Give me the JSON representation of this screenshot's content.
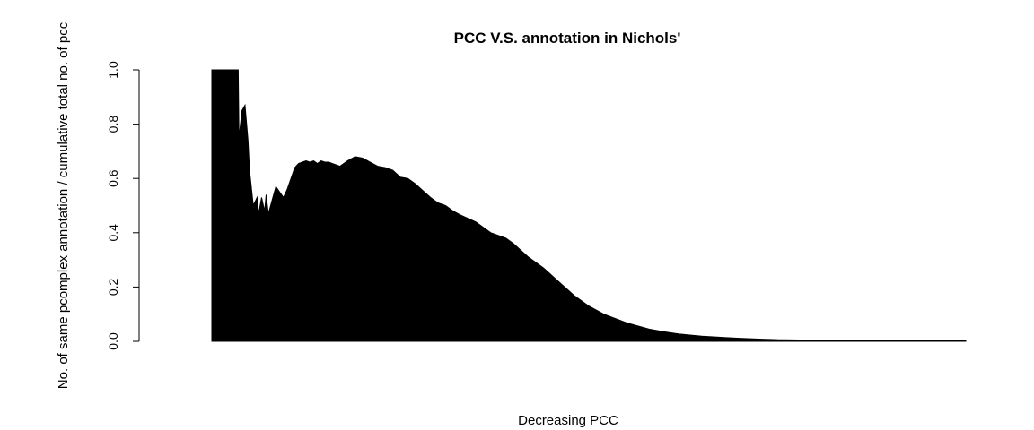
{
  "chart_data": {
    "type": "area",
    "title": "PCC V.S. annotation in Nichols'",
    "xlabel": "Decreasing PCC",
    "ylabel": "No. of same pcomplex annotation / cumulative total no. of pcc",
    "ylim": [
      0,
      1
    ],
    "yticks": [
      "0.0",
      "0.2",
      "0.4",
      "0.6",
      "0.8",
      "1.0"
    ],
    "xticks_shown": false,
    "series_color": "#000000",
    "x": [
      0,
      0.035,
      0.036,
      0.04,
      0.044,
      0.048,
      0.05,
      0.055,
      0.06,
      0.062,
      0.066,
      0.07,
      0.072,
      0.075,
      0.08,
      0.085,
      0.09,
      0.095,
      0.1,
      0.105,
      0.11,
      0.115,
      0.12,
      0.125,
      0.13,
      0.135,
      0.14,
      0.145,
      0.15,
      0.155,
      0.16,
      0.165,
      0.17,
      0.18,
      0.19,
      0.2,
      0.21,
      0.22,
      0.23,
      0.24,
      0.25,
      0.26,
      0.27,
      0.28,
      0.29,
      0.3,
      0.31,
      0.32,
      0.33,
      0.35,
      0.37,
      0.39,
      0.4,
      0.42,
      0.44,
      0.46,
      0.48,
      0.5,
      0.52,
      0.55,
      0.58,
      0.6,
      0.62,
      0.65,
      0.68,
      0.7,
      0.73,
      0.75,
      0.78,
      0.8,
      0.85,
      0.9,
      0.95,
      1.0
    ],
    "values": [
      1.0,
      1.0,
      0.75,
      0.85,
      0.87,
      0.74,
      0.63,
      0.5,
      0.53,
      0.47,
      0.53,
      0.48,
      0.54,
      0.47,
      0.52,
      0.57,
      0.55,
      0.53,
      0.56,
      0.6,
      0.64,
      0.655,
      0.66,
      0.665,
      0.66,
      0.665,
      0.655,
      0.665,
      0.66,
      0.66,
      0.655,
      0.65,
      0.645,
      0.665,
      0.68,
      0.675,
      0.66,
      0.645,
      0.64,
      0.63,
      0.605,
      0.6,
      0.58,
      0.555,
      0.53,
      0.51,
      0.5,
      0.48,
      0.465,
      0.44,
      0.4,
      0.38,
      0.36,
      0.31,
      0.27,
      0.22,
      0.17,
      0.13,
      0.1,
      0.068,
      0.045,
      0.035,
      0.027,
      0.019,
      0.014,
      0.011,
      0.008,
      0.006,
      0.005,
      0.004,
      0.003,
      0.002,
      0.002,
      0.002
    ]
  }
}
